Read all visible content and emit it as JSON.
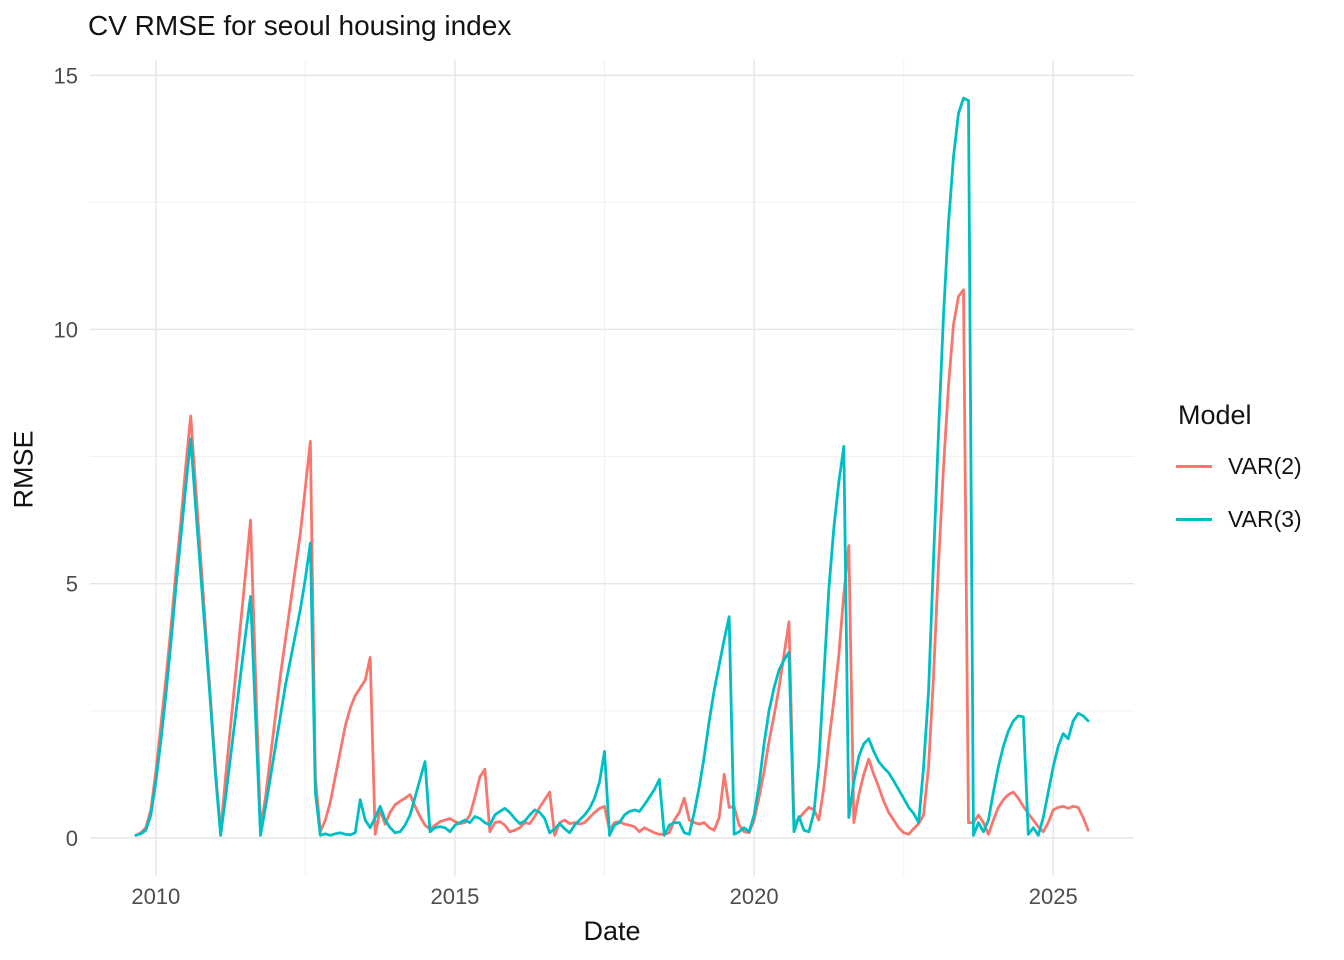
{
  "title": "CV RMSE for seoul housing index",
  "axes": {
    "x_title": "Date",
    "y_title": "RMSE"
  },
  "legend": {
    "title": "Model",
    "entries": [
      "VAR(2)",
      "VAR(3)"
    ]
  },
  "colors": {
    "var2": "#F8766D",
    "var3": "#00BFC4",
    "grid_major": "#E6E6E6",
    "grid_minor": "#F2F2F2",
    "tick_text": "#4D4D4D",
    "title_text": "#131313",
    "background": "#FFFFFF"
  },
  "chart_data": {
    "type": "line",
    "title": "CV RMSE for seoul housing index",
    "xlabel": "Date",
    "ylabel": "RMSE",
    "legend_title": "Model",
    "legend_position": "right",
    "grid": true,
    "x_ticks": [
      2010,
      2015,
      2020,
      2025
    ],
    "x_minor": [
      2012.5,
      2017.5,
      2022.5
    ],
    "y_ticks": [
      0,
      5,
      10,
      15
    ],
    "y_minor": [
      2.5,
      7.5,
      12.5
    ],
    "xlim": [
      2008.9,
      2026.35
    ],
    "ylim": [
      -0.75,
      15.3
    ],
    "frequency": "monthly",
    "start_year": 2009,
    "start_month": 9,
    "series": [
      {
        "name": "VAR(2)",
        "color": "#F8766D",
        "values": [
          0.05,
          0.1,
          0.2,
          0.55,
          1.3,
          2.2,
          3.1,
          4.1,
          5.2,
          6.2,
          7.3,
          8.3,
          6.9,
          5.5,
          4.1,
          2.7,
          1.3,
          0.12,
          1.2,
          2.2,
          3.2,
          4.2,
          5.2,
          6.25,
          3.2,
          0.2,
          0.8,
          1.6,
          2.4,
          3.2,
          3.9,
          4.6,
          5.3,
          6.0,
          6.9,
          7.8,
          1.2,
          0.12,
          0.35,
          0.7,
          1.2,
          1.7,
          2.2,
          2.55,
          2.8,
          2.95,
          3.1,
          3.55,
          0.07,
          0.55,
          0.27,
          0.5,
          0.65,
          0.72,
          0.78,
          0.85,
          0.62,
          0.42,
          0.25,
          0.17,
          0.25,
          0.32,
          0.35,
          0.38,
          0.32,
          0.28,
          0.3,
          0.45,
          0.8,
          1.2,
          1.35,
          0.12,
          0.3,
          0.32,
          0.25,
          0.12,
          0.15,
          0.2,
          0.3,
          0.28,
          0.42,
          0.6,
          0.75,
          0.9,
          0.05,
          0.3,
          0.35,
          0.28,
          0.3,
          0.27,
          0.3,
          0.4,
          0.5,
          0.58,
          0.62,
          0.15,
          0.3,
          0.32,
          0.27,
          0.25,
          0.22,
          0.12,
          0.2,
          0.15,
          0.1,
          0.07,
          0.07,
          0.1,
          0.35,
          0.5,
          0.78,
          0.35,
          0.3,
          0.27,
          0.3,
          0.2,
          0.15,
          0.4,
          1.25,
          0.6,
          0.62,
          0.25,
          0.12,
          0.1,
          0.35,
          0.8,
          1.3,
          1.9,
          2.4,
          2.95,
          3.6,
          4.25,
          0.3,
          0.38,
          0.5,
          0.6,
          0.55,
          0.35,
          1.0,
          1.9,
          2.7,
          3.6,
          4.8,
          5.75,
          0.3,
          0.85,
          1.25,
          1.55,
          1.25,
          1.0,
          0.72,
          0.5,
          0.35,
          0.2,
          0.1,
          0.07,
          0.18,
          0.28,
          0.45,
          1.4,
          3.2,
          5.4,
          7.3,
          8.9,
          10.1,
          10.65,
          10.78,
          0.3,
          0.3,
          0.45,
          0.3,
          0.07,
          0.35,
          0.6,
          0.75,
          0.85,
          0.9,
          0.78,
          0.62,
          0.48,
          0.35,
          0.22,
          0.12,
          0.3,
          0.55,
          0.6,
          0.62,
          0.58,
          0.62,
          0.6,
          0.4,
          0.15
        ]
      },
      {
        "name": "VAR(3)",
        "color": "#00BFC4",
        "values": [
          0.05,
          0.08,
          0.15,
          0.45,
          1.1,
          1.9,
          2.8,
          3.8,
          4.9,
          5.9,
          6.9,
          7.85,
          6.5,
          5.2,
          3.9,
          2.6,
          1.2,
          0.05,
          0.8,
          1.6,
          2.4,
          3.2,
          4.0,
          4.75,
          2.4,
          0.05,
          0.6,
          1.2,
          1.8,
          2.4,
          3.0,
          3.5,
          4.0,
          4.5,
          5.1,
          5.8,
          0.9,
          0.05,
          0.08,
          0.05,
          0.08,
          0.1,
          0.07,
          0.06,
          0.1,
          0.75,
          0.35,
          0.2,
          0.4,
          0.62,
          0.35,
          0.2,
          0.1,
          0.12,
          0.25,
          0.45,
          0.8,
          1.15,
          1.5,
          0.12,
          0.2,
          0.22,
          0.2,
          0.12,
          0.25,
          0.3,
          0.35,
          0.3,
          0.42,
          0.38,
          0.3,
          0.25,
          0.45,
          0.52,
          0.58,
          0.5,
          0.38,
          0.28,
          0.33,
          0.45,
          0.55,
          0.5,
          0.38,
          0.1,
          0.18,
          0.28,
          0.18,
          0.1,
          0.25,
          0.35,
          0.45,
          0.58,
          0.78,
          1.1,
          1.7,
          0.05,
          0.25,
          0.3,
          0.45,
          0.52,
          0.55,
          0.52,
          0.65,
          0.8,
          0.95,
          1.15,
          0.05,
          0.25,
          0.3,
          0.3,
          0.1,
          0.07,
          0.5,
          1.0,
          1.6,
          2.3,
          2.9,
          3.4,
          3.9,
          4.35,
          0.07,
          0.12,
          0.2,
          0.12,
          0.45,
          1.05,
          1.85,
          2.5,
          2.95,
          3.3,
          3.5,
          3.65,
          0.12,
          0.42,
          0.15,
          0.12,
          0.5,
          1.5,
          3.2,
          4.9,
          6.1,
          7.0,
          7.7,
          0.4,
          1.1,
          1.6,
          1.85,
          1.95,
          1.7,
          1.5,
          1.38,
          1.28,
          1.12,
          0.95,
          0.78,
          0.6,
          0.48,
          0.3,
          1.4,
          2.9,
          5.5,
          8.0,
          10.3,
          12.1,
          13.4,
          14.25,
          14.55,
          14.5,
          0.05,
          0.3,
          0.12,
          0.35,
          0.9,
          1.4,
          1.8,
          2.1,
          2.3,
          2.4,
          2.38,
          0.07,
          0.2,
          0.05,
          0.4,
          0.9,
          1.4,
          1.8,
          2.05,
          1.95,
          2.3,
          2.45,
          2.4,
          2.3
        ]
      }
    ]
  }
}
